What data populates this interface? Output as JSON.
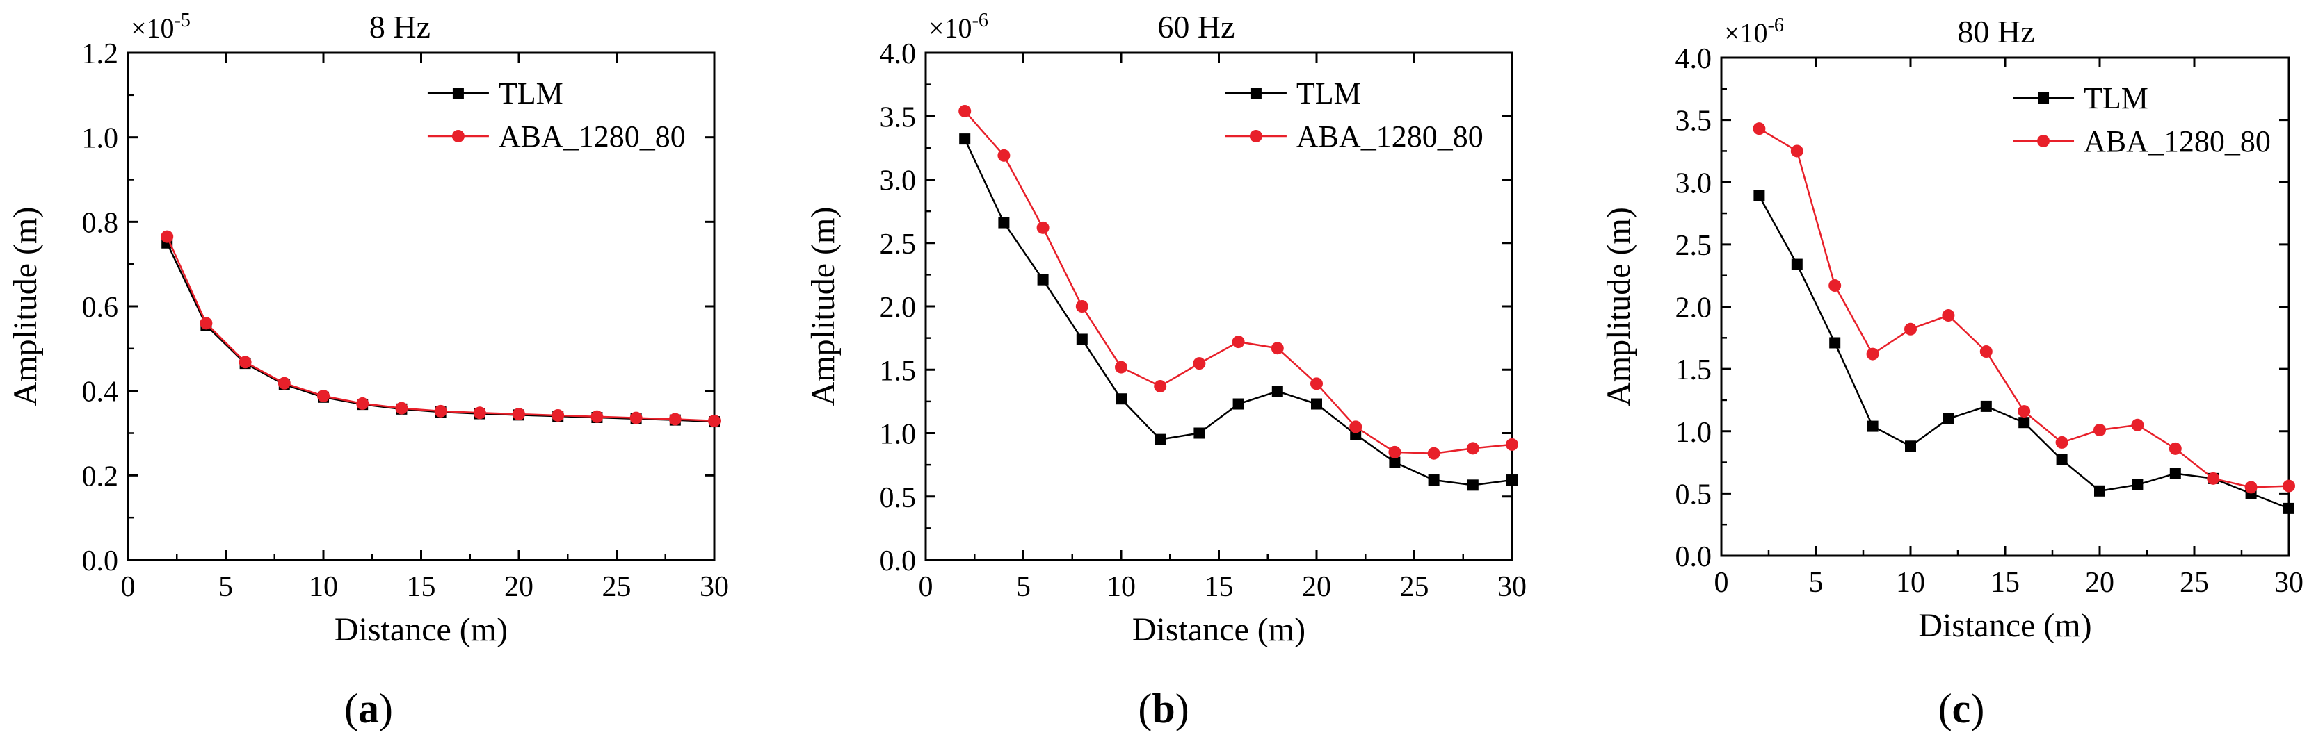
{
  "chart_data": [
    {
      "type": "line",
      "panel_label": "a",
      "title": "8 Hz",
      "xlabel": "Distance (m)",
      "ylabel": "Amplitude (m)",
      "multiplier": "×10",
      "multiplier_exp": "-5",
      "xlim": [
        0,
        30
      ],
      "ylim": [
        0,
        1.2
      ],
      "xticks": [
        0,
        5,
        10,
        15,
        20,
        25,
        30
      ],
      "xtick_labels": [
        "0",
        "5",
        "10",
        "15",
        "20",
        "25",
        "30"
      ],
      "yticks": [
        0,
        0.2,
        0.4,
        0.6,
        0.8,
        1.0,
        1.2
      ],
      "ytick_labels": [
        "0.0",
        "0.2",
        "0.4",
        "0.6",
        "0.8",
        "1.0",
        "1.2"
      ],
      "legend_position": "top-right",
      "x": [
        2,
        4,
        6,
        8,
        10,
        12,
        14,
        16,
        18,
        20,
        22,
        24,
        26,
        28,
        30
      ],
      "series": [
        {
          "name": "TLM",
          "color": "#000000",
          "marker": "square",
          "values": [
            0.75,
            0.555,
            0.465,
            0.415,
            0.385,
            0.368,
            0.357,
            0.35,
            0.346,
            0.343,
            0.34,
            0.337,
            0.334,
            0.331,
            0.327
          ]
        },
        {
          "name": "ABA_1280_80",
          "color": "#e8202a",
          "marker": "circle",
          "values": [
            0.765,
            0.56,
            0.468,
            0.418,
            0.388,
            0.37,
            0.359,
            0.352,
            0.348,
            0.345,
            0.342,
            0.339,
            0.336,
            0.333,
            0.329
          ]
        }
      ]
    },
    {
      "type": "line",
      "panel_label": "b",
      "title": "60 Hz",
      "xlabel": "Distance (m)",
      "ylabel": "Amplitude (m)",
      "multiplier": "×10",
      "multiplier_exp": "-6",
      "xlim": [
        0,
        30
      ],
      "ylim": [
        0,
        4.0
      ],
      "xticks": [
        0,
        5,
        10,
        15,
        20,
        25,
        30
      ],
      "xtick_labels": [
        "0",
        "5",
        "10",
        "15",
        "20",
        "25",
        "30"
      ],
      "yticks": [
        0,
        0.5,
        1.0,
        1.5,
        2.0,
        2.5,
        3.0,
        3.5,
        4.0
      ],
      "ytick_labels": [
        "0.0",
        "0.5",
        "1.0",
        "1.5",
        "2.0",
        "2.5",
        "3.0",
        "3.5",
        "4.0"
      ],
      "legend_position": "top-right",
      "x": [
        2,
        4,
        6,
        8,
        10,
        12,
        14,
        16,
        18,
        20,
        22,
        24,
        26,
        28,
        30
      ],
      "series": [
        {
          "name": "TLM",
          "color": "#000000",
          "marker": "square",
          "values": [
            3.32,
            2.66,
            2.21,
            1.74,
            1.27,
            0.95,
            1.0,
            1.23,
            1.33,
            1.23,
            0.99,
            0.77,
            0.63,
            0.59,
            0.63
          ]
        },
        {
          "name": "ABA_1280_80",
          "color": "#e8202a",
          "marker": "circle",
          "values": [
            3.54,
            3.19,
            2.62,
            2.0,
            1.52,
            1.37,
            1.55,
            1.72,
            1.67,
            1.39,
            1.05,
            0.85,
            0.84,
            0.88,
            0.91
          ]
        }
      ]
    },
    {
      "type": "line",
      "panel_label": "c",
      "title": "80 Hz",
      "xlabel": "Distance (m)",
      "ylabel": "Amplitude (m)",
      "multiplier": "×10",
      "multiplier_exp": "-6",
      "xlim": [
        0,
        30
      ],
      "ylim": [
        0,
        4.0
      ],
      "xticks": [
        0,
        5,
        10,
        15,
        20,
        25,
        30
      ],
      "xtick_labels": [
        "0",
        "5",
        "10",
        "15",
        "20",
        "25",
        "30"
      ],
      "yticks": [
        0,
        0.5,
        1.0,
        1.5,
        2.0,
        2.5,
        3.0,
        3.5,
        4.0
      ],
      "ytick_labels": [
        "0.0",
        "0.5",
        "1.0",
        "1.5",
        "2.0",
        "2.5",
        "3.0",
        "3.5",
        "4.0"
      ],
      "legend_position": "top-right",
      "x": [
        2,
        4,
        6,
        8,
        10,
        12,
        14,
        16,
        18,
        20,
        22,
        24,
        26,
        28,
        30
      ],
      "series": [
        {
          "name": "TLM",
          "color": "#000000",
          "marker": "square",
          "values": [
            2.89,
            2.34,
            1.71,
            1.04,
            0.88,
            1.1,
            1.2,
            1.07,
            0.77,
            0.52,
            0.57,
            0.66,
            0.62,
            0.5,
            0.38
          ]
        },
        {
          "name": "ABA_1280_80",
          "color": "#e8202a",
          "marker": "circle",
          "values": [
            3.43,
            3.25,
            2.17,
            1.62,
            1.82,
            1.93,
            1.64,
            1.16,
            0.91,
            1.01,
            1.05,
            0.86,
            0.62,
            0.55,
            0.56
          ]
        }
      ]
    }
  ]
}
